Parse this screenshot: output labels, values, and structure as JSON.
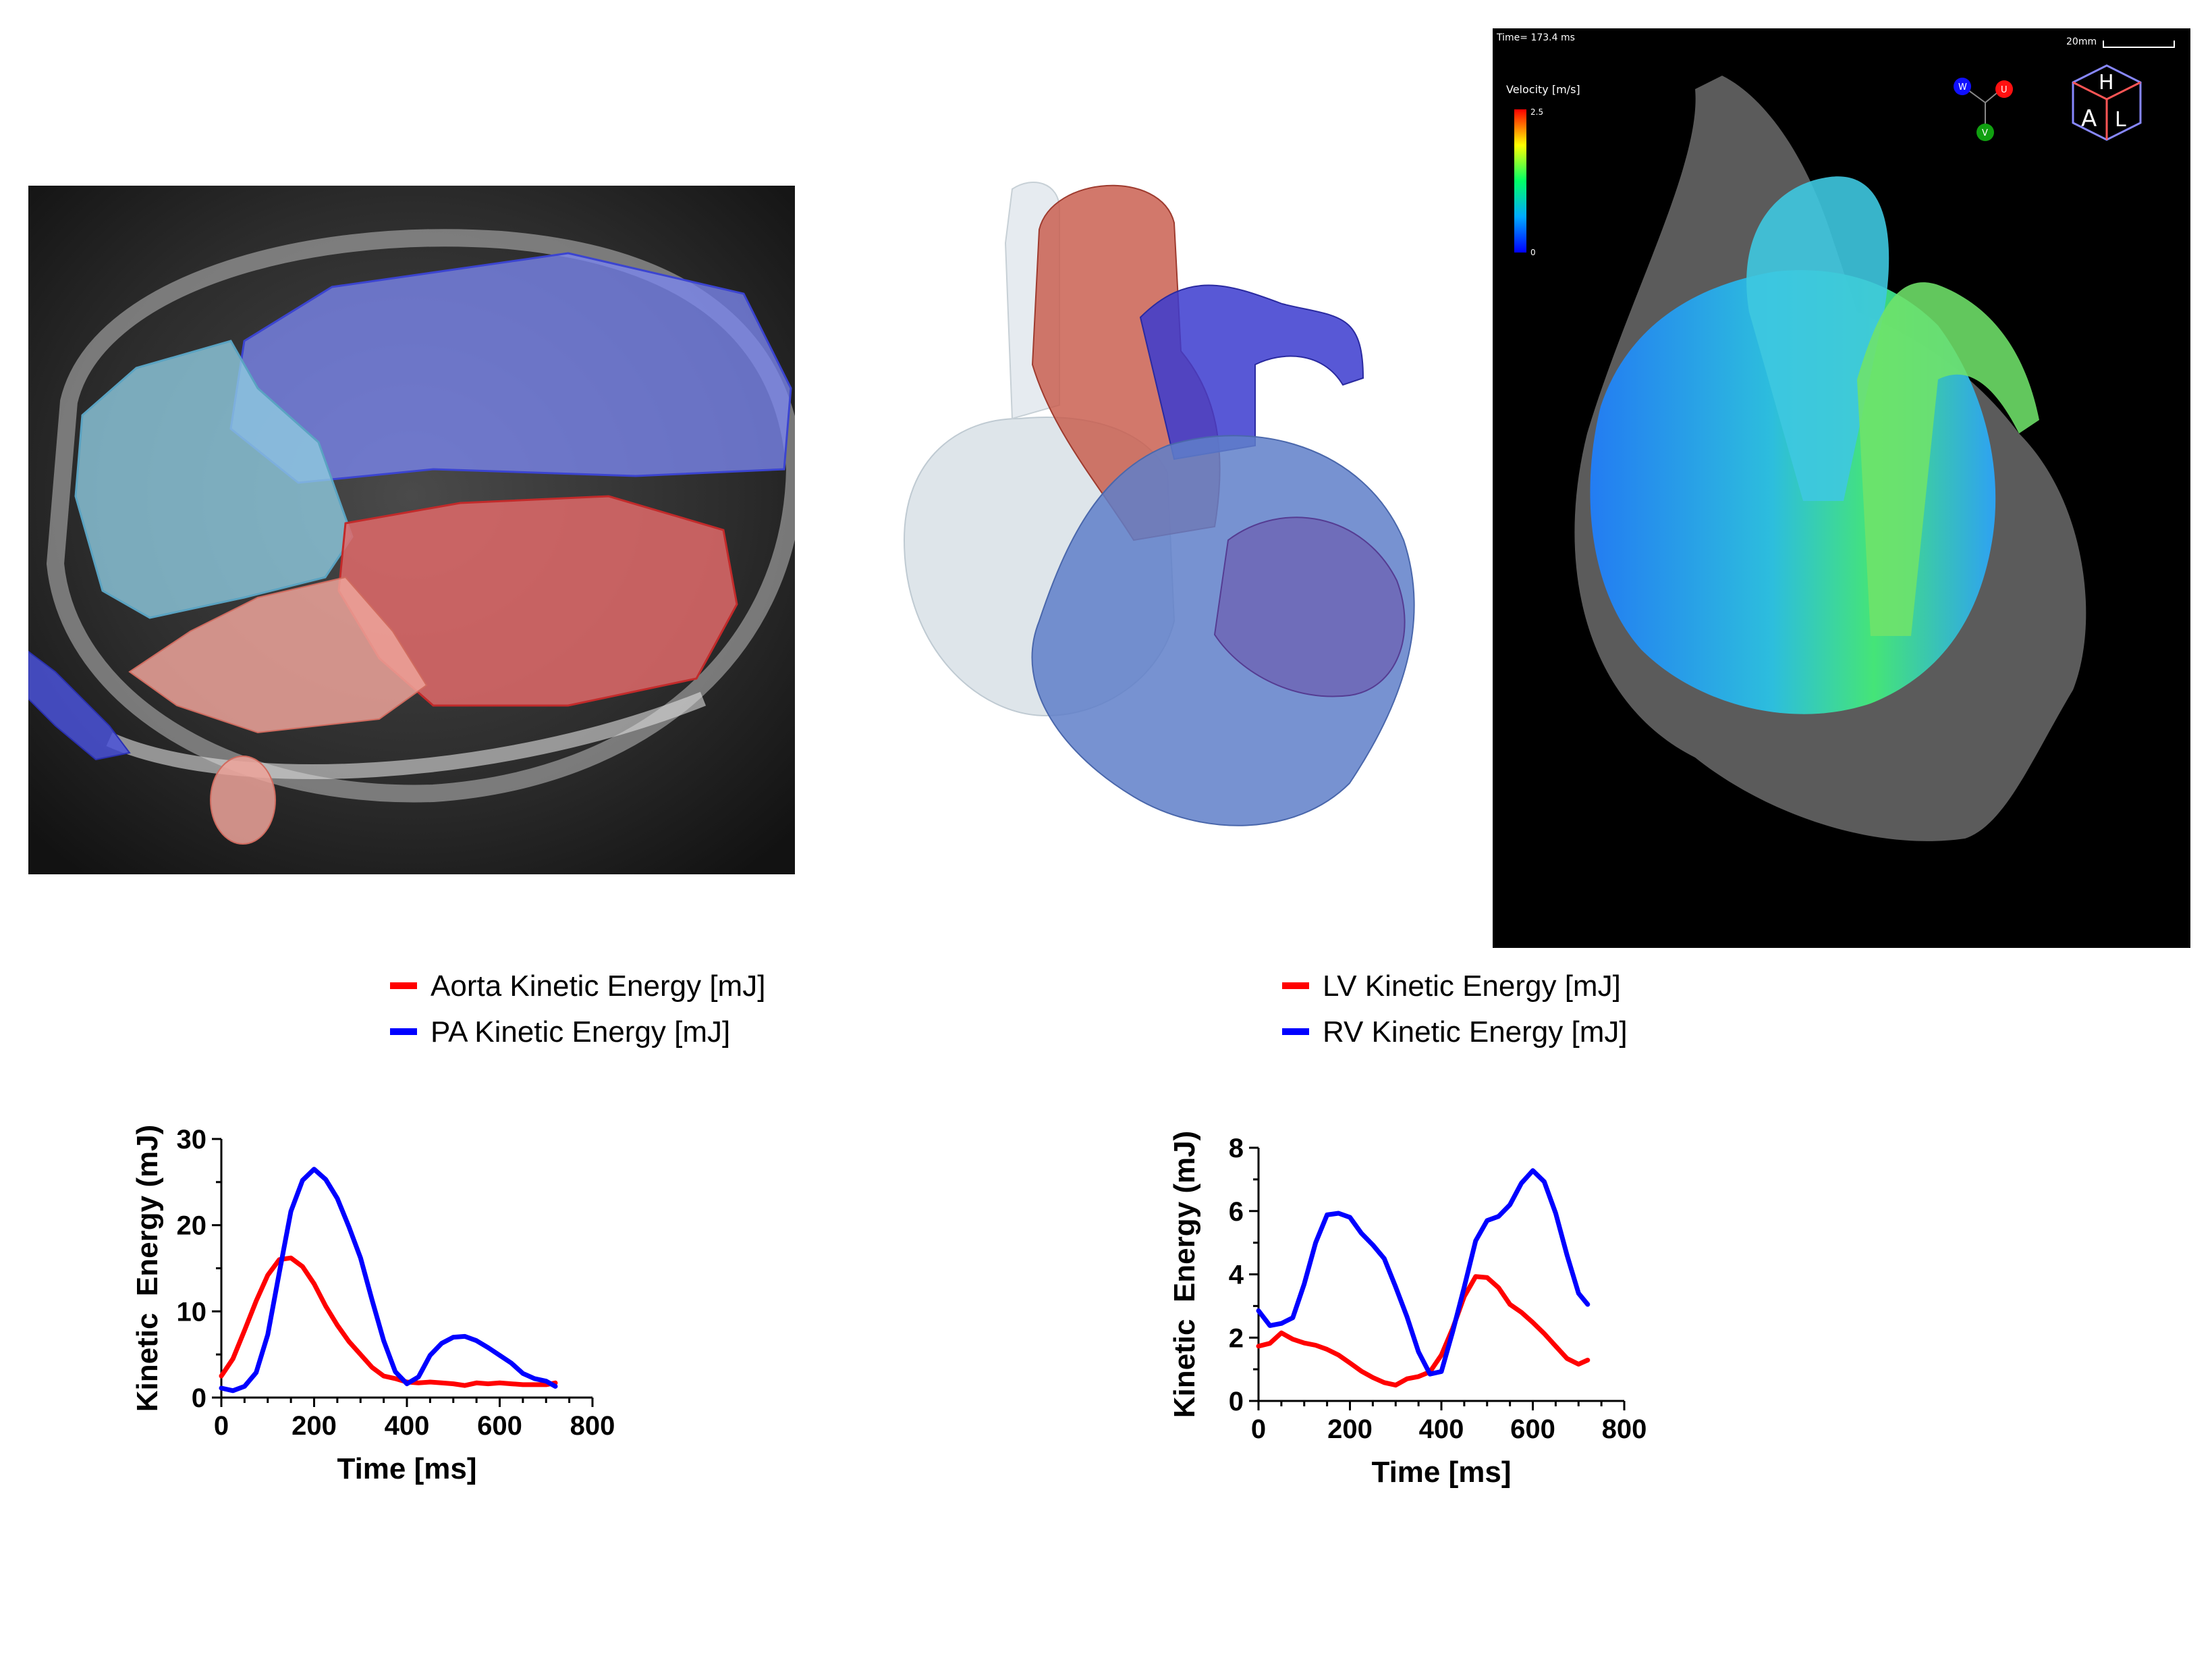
{
  "flow_overlay": {
    "time_readout": "Time= 173.4 ms",
    "scale_bar_label": "20mm",
    "colorbar_title": "Velocity [m/s]",
    "colorbar_max": "2.5",
    "colorbar_min": "0",
    "axes": {
      "w": "W",
      "u": "U",
      "v": "V"
    },
    "cube_letters": {
      "h": "H",
      "a": "A",
      "l": "L"
    }
  },
  "chart_data": [
    {
      "type": "line",
      "xlabel": "Time [ms]",
      "ylabel": "Kinetic  Energy (mJ)",
      "xlim": [
        0,
        800
      ],
      "ylim": [
        0,
        30
      ],
      "xticks": [
        "0",
        "200",
        "400",
        "600",
        "800"
      ],
      "yticks": [
        "0",
        "10",
        "20",
        "30"
      ],
      "grid": false,
      "legend_position": "top-right",
      "series": [
        {
          "name": "Aorta Kinetic Energy [mJ]",
          "color": "#ff0000",
          "x": [
            0,
            25,
            50,
            75,
            100,
            125,
            150,
            175,
            200,
            225,
            250,
            275,
            300,
            325,
            350,
            375,
            400,
            425,
            450,
            475,
            500,
            525,
            550,
            575,
            600,
            625,
            650,
            675,
            700,
            720
          ],
          "y": [
            2.5,
            4.5,
            7.8,
            11.2,
            14.2,
            16.0,
            16.2,
            15.2,
            13.2,
            10.6,
            8.4,
            6.5,
            5.0,
            3.5,
            2.5,
            2.2,
            1.8,
            1.7,
            1.8,
            1.7,
            1.6,
            1.4,
            1.7,
            1.6,
            1.7,
            1.6,
            1.5,
            1.5,
            1.5,
            1.7
          ]
        },
        {
          "name": "PA Kinetic Energy [mJ]",
          "color": "#0000ff",
          "x": [
            0,
            25,
            50,
            75,
            100,
            125,
            150,
            175,
            200,
            225,
            250,
            275,
            300,
            325,
            350,
            375,
            400,
            425,
            450,
            475,
            500,
            525,
            550,
            575,
            600,
            625,
            650,
            675,
            700,
            720
          ],
          "y": [
            1.1,
            0.8,
            1.3,
            2.9,
            7.3,
            14.5,
            21.6,
            25.2,
            26.5,
            25.3,
            23.1,
            19.8,
            16.2,
            11.3,
            6.6,
            3.0,
            1.6,
            2.4,
            4.9,
            6.3,
            7.0,
            7.1,
            6.6,
            5.8,
            4.9,
            4.0,
            2.8,
            2.2,
            1.9,
            1.3
          ]
        }
      ]
    },
    {
      "type": "line",
      "xlabel": "Time [ms]",
      "ylabel": "Kinetic  Energy (mJ)",
      "xlim": [
        0,
        800
      ],
      "ylim": [
        0,
        8
      ],
      "xticks": [
        "0",
        "200",
        "400",
        "600",
        "800"
      ],
      "yticks": [
        "0",
        "2",
        "4",
        "6",
        "8"
      ],
      "grid": false,
      "legend_position": "top-left",
      "series": [
        {
          "name": "LV Kinetic Energy [mJ]",
          "color": "#ff0000",
          "x": [
            0,
            25,
            50,
            75,
            100,
            125,
            150,
            175,
            200,
            225,
            250,
            275,
            300,
            325,
            350,
            375,
            400,
            425,
            450,
            475,
            500,
            525,
            550,
            575,
            600,
            625,
            650,
            675,
            700,
            720
          ],
          "y": [
            1.73,
            1.82,
            2.15,
            1.95,
            1.83,
            1.76,
            1.63,
            1.45,
            1.2,
            0.94,
            0.74,
            0.58,
            0.5,
            0.7,
            0.77,
            0.92,
            1.45,
            2.3,
            3.3,
            3.93,
            3.9,
            3.58,
            3.05,
            2.8,
            2.48,
            2.13,
            1.73,
            1.34,
            1.16,
            1.29
          ]
        },
        {
          "name": "RV Kinetic Energy [mJ]",
          "color": "#0000ff",
          "x": [
            0,
            25,
            50,
            75,
            100,
            125,
            150,
            175,
            200,
            225,
            250,
            275,
            300,
            325,
            350,
            375,
            400,
            425,
            450,
            475,
            500,
            525,
            550,
            575,
            600,
            625,
            650,
            675,
            700,
            720
          ],
          "y": [
            2.85,
            2.38,
            2.45,
            2.63,
            3.7,
            5.0,
            5.88,
            5.93,
            5.8,
            5.3,
            4.93,
            4.5,
            3.6,
            2.65,
            1.55,
            0.85,
            0.93,
            2.2,
            3.6,
            5.06,
            5.7,
            5.83,
            6.2,
            6.88,
            7.28,
            6.93,
            5.93,
            4.6,
            3.4,
            3.05
          ]
        }
      ]
    }
  ]
}
